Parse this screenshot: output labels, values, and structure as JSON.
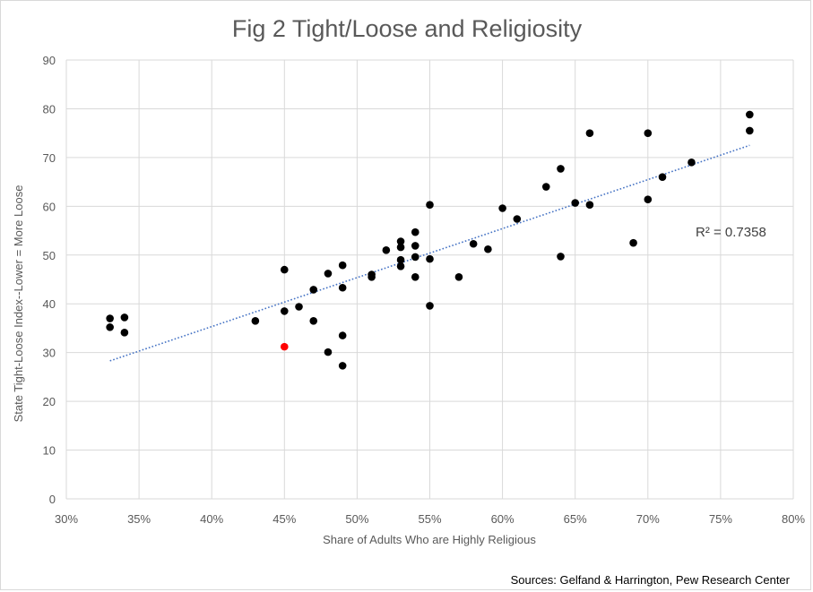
{
  "chart_data": {
    "type": "scatter",
    "title": "Fig 2 Tight/Loose and Religiosity",
    "xlabel": "Share of Adults Who are Highly Religious",
    "ylabel": "State Tight-Loose Index--Lower = More Loose",
    "xlim": [
      0.3,
      0.8
    ],
    "ylim": [
      0,
      90
    ],
    "x_ticks": [
      0.3,
      0.35,
      0.4,
      0.45,
      0.5,
      0.55,
      0.6,
      0.65,
      0.7,
      0.75,
      0.8
    ],
    "x_tick_labels": [
      "30%",
      "35%",
      "40%",
      "45%",
      "50%",
      "55%",
      "60%",
      "65%",
      "70%",
      "75%",
      "80%"
    ],
    "y_ticks": [
      0,
      10,
      20,
      30,
      40,
      50,
      60,
      70,
      80,
      90
    ],
    "y_tick_labels": [
      "0",
      "10",
      "20",
      "30",
      "40",
      "50",
      "60",
      "70",
      "80",
      "90"
    ],
    "grid": true,
    "annotation": "R² = 0.7358",
    "source": "Sources: Gelfand & Harrington, Pew Research Center",
    "colors": {
      "point": "#000000",
      "highlight": "#ff0000",
      "trendline": "#4472c4",
      "grid": "#d9d9d9"
    },
    "trendline": {
      "x": [
        0.33,
        0.77
      ],
      "y": [
        28.3,
        72.5
      ]
    },
    "highlight_point": {
      "x": 0.45,
      "y": 31.2
    },
    "series": [
      {
        "points": [
          [
            0.33,
            37.0
          ],
          [
            0.33,
            35.2
          ],
          [
            0.34,
            37.2
          ],
          [
            0.34,
            34.1
          ],
          [
            0.43,
            36.5
          ],
          [
            0.45,
            47.0
          ],
          [
            0.45,
            38.5
          ],
          [
            0.46,
            39.4
          ],
          [
            0.47,
            42.9
          ],
          [
            0.47,
            36.5
          ],
          [
            0.48,
            46.2
          ],
          [
            0.48,
            30.1
          ],
          [
            0.49,
            47.9
          ],
          [
            0.49,
            43.3
          ],
          [
            0.49,
            33.5
          ],
          [
            0.49,
            27.3
          ],
          [
            0.51,
            46.0
          ],
          [
            0.51,
            45.5
          ],
          [
            0.52,
            51.0
          ],
          [
            0.53,
            52.8
          ],
          [
            0.53,
            51.6
          ],
          [
            0.53,
            49.0
          ],
          [
            0.53,
            47.7
          ],
          [
            0.54,
            54.7
          ],
          [
            0.54,
            51.9
          ],
          [
            0.54,
            49.6
          ],
          [
            0.54,
            45.5
          ],
          [
            0.55,
            60.3
          ],
          [
            0.55,
            49.2
          ],
          [
            0.55,
            39.6
          ],
          [
            0.57,
            45.5
          ],
          [
            0.58,
            52.3
          ],
          [
            0.59,
            51.2
          ],
          [
            0.6,
            59.6
          ],
          [
            0.61,
            57.4
          ],
          [
            0.63,
            64.0
          ],
          [
            0.64,
            67.7
          ],
          [
            0.64,
            49.7
          ],
          [
            0.65,
            60.7
          ],
          [
            0.66,
            75.0
          ],
          [
            0.66,
            60.3
          ],
          [
            0.69,
            52.5
          ],
          [
            0.7,
            75.0
          ],
          [
            0.7,
            61.4
          ],
          [
            0.71,
            66.0
          ],
          [
            0.73,
            69.0
          ],
          [
            0.77,
            78.8
          ],
          [
            0.77,
            75.5
          ]
        ]
      }
    ]
  }
}
